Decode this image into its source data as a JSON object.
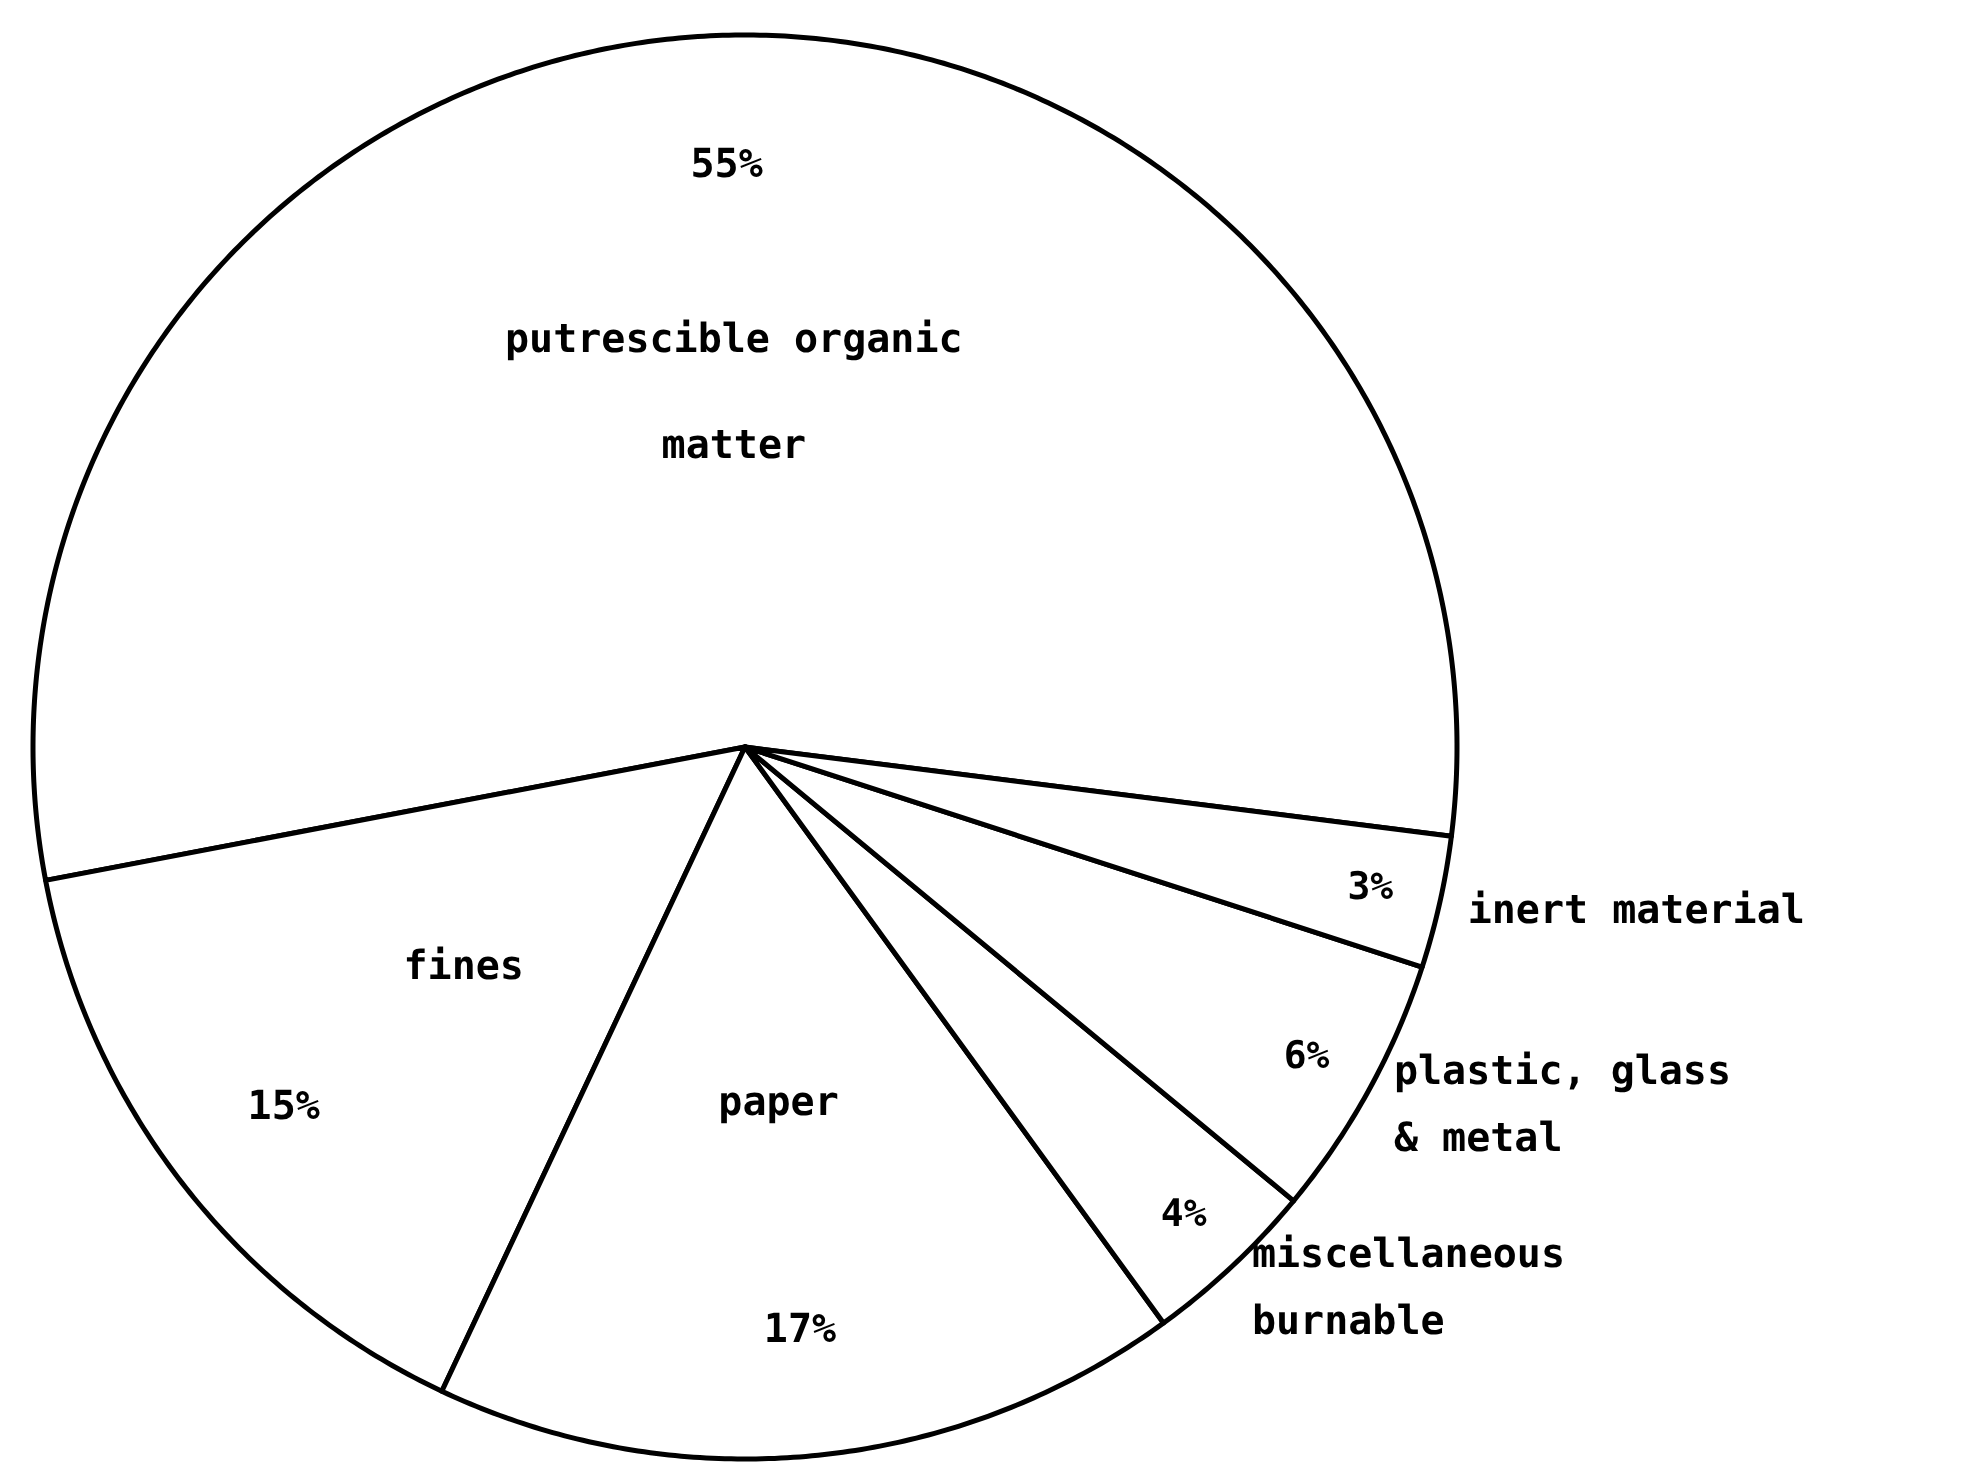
{
  "chart_data": {
    "type": "pie",
    "categories": [
      "putrescible organic matter",
      "fines",
      "paper",
      "miscellaneous burnable",
      "plastic, glass & metal",
      "inert material"
    ],
    "values": [
      55,
      15,
      17,
      4,
      6,
      3
    ],
    "value_labels": [
      "55%",
      "15%",
      "17%",
      "4%",
      "6%",
      "3%"
    ],
    "colors": [
      "#ffffff",
      "#ffffff",
      "#ffffff",
      "#ffffff",
      "#ffffff",
      "#ffffff"
    ]
  }
}
